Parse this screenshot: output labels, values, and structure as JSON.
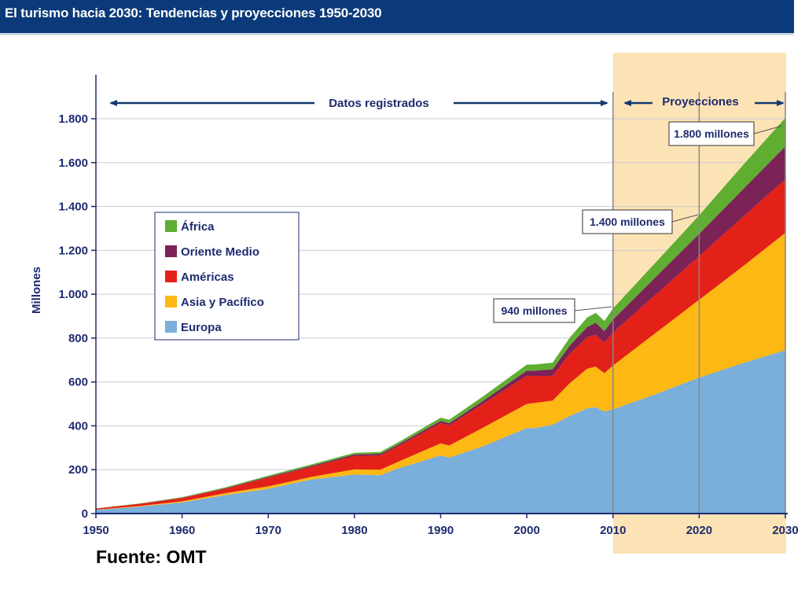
{
  "header": {
    "title": "El turismo hacia 2030: Tendencias y proyecciones 1950-2030"
  },
  "source": "Fuente: OMT",
  "chart_data": {
    "type": "area",
    "stacked": true,
    "ylabel": "Millones",
    "xlabel": "",
    "xlim": [
      1950,
      2030
    ],
    "ylim": [
      0,
      1800
    ],
    "x_ticks": [
      1950,
      1960,
      1970,
      1980,
      1990,
      2000,
      2010,
      2020,
      2030
    ],
    "y_ticks": [
      0,
      200,
      400,
      600,
      800,
      1000,
      1200,
      1400,
      1600,
      1800
    ],
    "y_tick_labels": [
      "0",
      "200",
      "400",
      "600",
      "800",
      "1.000",
      "1.200",
      "1.400",
      "1.600",
      "1.800"
    ],
    "grid": "horizontal",
    "legend_position": "upper-left",
    "x": [
      1950,
      1955,
      1960,
      1965,
      1970,
      1975,
      1980,
      1983,
      1985,
      1990,
      1991,
      1995,
      2000,
      2001,
      2003,
      2005,
      2007,
      2008,
      2009,
      2010,
      2015,
      2020,
      2025,
      2030
    ],
    "series": [
      {
        "name": "Europa",
        "color": "#7aaedb",
        "values": [
          17,
          31,
          51,
          84,
          113,
          155,
          178,
          175,
          205,
          265,
          255,
          308,
          390,
          390,
          405,
          445,
          480,
          485,
          465,
          475,
          545,
          620,
          685,
          745
        ]
      },
      {
        "name": "Asia y Pacífico",
        "color": "#fdb813",
        "values": [
          1,
          3,
          5,
          9,
          11,
          12,
          23,
          25,
          30,
          55,
          55,
          85,
          110,
          115,
          110,
          150,
          180,
          185,
          175,
          200,
          280,
          355,
          440,
          535
        ]
      },
      {
        "name": "Américas",
        "color": "#e32119",
        "values": [
          5,
          10,
          15,
          20,
          40,
          45,
          62,
          65,
          70,
          92,
          92,
          109,
          128,
          122,
          113,
          134,
          144,
          145,
          140,
          150,
          175,
          199,
          225,
          245
        ]
      },
      {
        "name": "Oriente Medio",
        "color": "#7b2257",
        "values": [
          0.2,
          0.5,
          1,
          2,
          3,
          5,
          7,
          8,
          8,
          10,
          10,
          14,
          24,
          25,
          30,
          38,
          47,
          55,
          52,
          60,
          80,
          101,
          125,
          149
        ]
      },
      {
        "name": "África",
        "color": "#5fae32",
        "values": [
          0.5,
          1,
          3,
          4,
          6,
          7,
          7,
          8,
          10,
          15,
          16,
          20,
          27,
          28,
          30,
          36,
          43,
          45,
          46,
          50,
          67,
          85,
          110,
          130
        ]
      }
    ],
    "band_labels": {
      "recorded": "Datos registrados",
      "projections": "Proyecciones"
    },
    "projection_start": 2010,
    "annotations": [
      {
        "text": "940 millones",
        "x": 2010,
        "y": 940
      },
      {
        "text": "1.400 millones",
        "x": 2020,
        "y": 1400
      },
      {
        "text": "1.800 millones",
        "x": 2030,
        "y": 1800
      }
    ],
    "colors": {
      "axis": "#1e2b6e",
      "grid": "#c9ccd6",
      "projection_band": "#fce3b5",
      "arrow": "#13386e",
      "marker_line": "#888888"
    }
  }
}
